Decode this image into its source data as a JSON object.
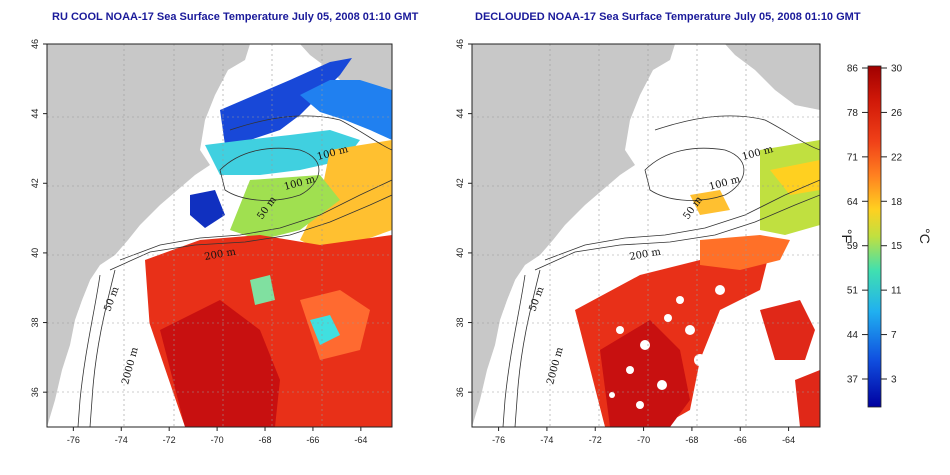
{
  "panels": [
    {
      "title": "RU COOL NOAA-17 Sea Surface Temperature July 05, 2008 01:10 GMT",
      "contour_labels": [
        "100 m",
        "100 m",
        "50 m",
        "200 m",
        "50 m",
        "2000 m"
      ]
    },
    {
      "title": "DECLOUDED NOAA-17 Sea Surface Temperature July 05, 2008 01:10 GMT",
      "contour_labels": [
        "100 m",
        "100 m",
        "50 m",
        "200 m",
        "50 m",
        "2000 m"
      ]
    }
  ],
  "axes": {
    "x_ticks": [
      "-76",
      "-74",
      "-72",
      "-70",
      "-68",
      "-66",
      "-64"
    ],
    "y_ticks": [
      "46",
      "44",
      "42",
      "40",
      "38",
      "36"
    ]
  },
  "colorbar": {
    "fahrenheit_label": "°F",
    "celsius_label": "°C",
    "fahrenheit_ticks": [
      "86",
      "78",
      "71",
      "64",
      "59",
      "51",
      "44",
      "37"
    ],
    "celsius_ticks": [
      "30",
      "26",
      "22",
      "18",
      "15",
      "11",
      "7",
      "3"
    ],
    "colors": [
      "#b00000",
      "#e02010",
      "#ff5020",
      "#ff9020",
      "#ffd020",
      "#b0e040",
      "#40e0c0",
      "#20a0ff",
      "#1040e0",
      "#0000a0"
    ]
  },
  "map_colors": {
    "land": "#c8c8c8",
    "warm": "#e02818",
    "hot": "#c81010",
    "mid": "#ff9020",
    "cool": "#40e0e0",
    "cold": "#1030d0"
  }
}
